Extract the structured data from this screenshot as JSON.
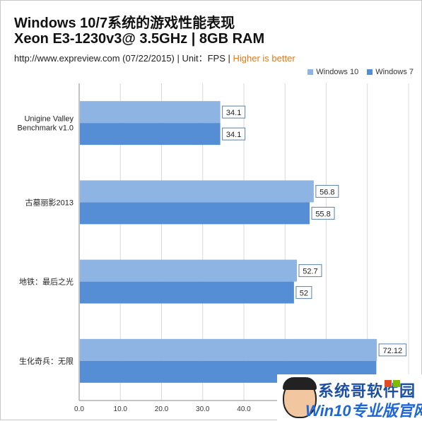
{
  "header": {
    "title_line1": "Windows 10/7系统的游戏性能表现",
    "title_line2": "Xeon E3-1230v3@ 3.5GHz | 8GB RAM",
    "subtitle_main": "http://www.expreview.com (07/22/2015) | Unit：FPS | ",
    "subtitle_accent": "Higher is better"
  },
  "colors": {
    "win10": "#8db4e2",
    "win7": "#558ed5",
    "accent": "#e07a1f",
    "grid": "#d9d9d9"
  },
  "watermark": {
    "line1": "系统哥软件园",
    "line2": "Win10专业版官网"
  },
  "chart_data": {
    "type": "bar",
    "orientation": "horizontal",
    "categories": [
      "Unigine Valley Benchmark v1.0",
      "古墓丽影2013",
      "地铁：最后之光",
      "生化奇兵：无限"
    ],
    "category_lines": [
      [
        "Unigine Valley",
        "Benchmark v1.0"
      ],
      [
        "古墓丽影2013"
      ],
      [
        "地铁：最后之光"
      ],
      [
        "生化奇兵：无限"
      ]
    ],
    "series": [
      {
        "name": "Windows 10",
        "values": [
          34.1,
          56.8,
          52.7,
          72.12
        ],
        "labels": [
          "34.1",
          "56.8",
          "52.7",
          "72.12"
        ]
      },
      {
        "name": "Windows 7",
        "values": [
          34.1,
          55.8,
          52,
          72.0
        ],
        "labels": [
          "34.1",
          "55.8",
          "52",
          ""
        ]
      }
    ],
    "xlim": [
      0,
      80
    ],
    "xticks": [
      "0.0",
      "10.0",
      "20.0",
      "30.0",
      "40.0"
    ],
    "grid": true,
    "legend_position": "top-right"
  }
}
